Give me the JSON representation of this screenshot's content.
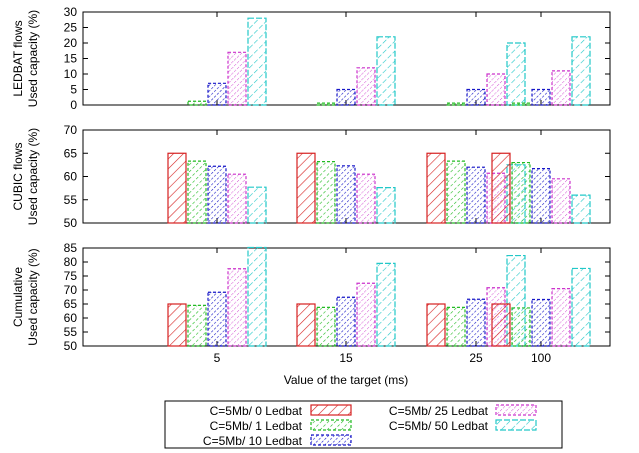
{
  "chart_data": [
    {
      "type": "bar",
      "ylabel": [
        "LEDBAT flows",
        "Used capacity (%)"
      ],
      "ylim": [
        0,
        30
      ],
      "yticks": [
        0,
        5,
        10,
        15,
        20,
        25,
        30
      ],
      "categories": [
        "5",
        "15",
        "25",
        "100"
      ],
      "series": [
        {
          "name": "C=5Mb/ 0 Ledbat",
          "values": [
            0,
            0,
            0,
            0
          ]
        },
        {
          "name": "C=5Mb/ 1 Ledbat",
          "values": [
            1.2,
            0.6,
            0.6,
            0.6
          ]
        },
        {
          "name": "C=5Mb/ 10 Ledbat",
          "values": [
            7,
            5,
            5,
            5
          ]
        },
        {
          "name": "C=5Mb/ 25 Ledbat",
          "values": [
            17,
            12,
            10,
            11
          ]
        },
        {
          "name": "C=5Mb/ 50 Ledbat",
          "values": [
            28,
            22,
            20,
            22
          ]
        }
      ]
    },
    {
      "type": "bar",
      "ylabel": [
        "CUBIC flows",
        "Used capacity (%)"
      ],
      "ylim": [
        50,
        70
      ],
      "yticks": [
        50,
        55,
        60,
        65,
        70
      ],
      "categories": [
        "5",
        "15",
        "25",
        "100"
      ],
      "series": [
        {
          "name": "C=5Mb/ 0 Ledbat",
          "values": [
            65,
            65,
            65,
            65
          ]
        },
        {
          "name": "C=5Mb/ 1 Ledbat",
          "values": [
            63.3,
            63.2,
            63.3,
            63
          ]
        },
        {
          "name": "C=5Mb/ 10 Ledbat",
          "values": [
            62.2,
            62.3,
            62,
            61.7
          ]
        },
        {
          "name": "C=5Mb/ 25 Ledbat",
          "values": [
            60.5,
            60.5,
            60.7,
            59.5
          ]
        },
        {
          "name": "C=5Mb/ 50 Ledbat",
          "values": [
            57.7,
            57.6,
            62.5,
            56
          ]
        }
      ]
    },
    {
      "type": "bar",
      "ylabel": [
        "Cumulative",
        "Used capacity (%)"
      ],
      "ylim": [
        50,
        85
      ],
      "yticks": [
        50,
        55,
        60,
        65,
        70,
        75,
        80,
        85
      ],
      "xlabel": "Value of the target (ms)",
      "categories": [
        "5",
        "15",
        "25",
        "100"
      ],
      "series": [
        {
          "name": "C=5Mb/ 0 Ledbat",
          "values": [
            65,
            65,
            65,
            65
          ]
        },
        {
          "name": "C=5Mb/ 1 Ledbat",
          "values": [
            64.5,
            63.8,
            63.8,
            63.6
          ]
        },
        {
          "name": "C=5Mb/ 10 Ledbat",
          "values": [
            69.2,
            67.4,
            66.7,
            66.6
          ]
        },
        {
          "name": "C=5Mb/ 25 Ledbat",
          "values": [
            77.6,
            72.4,
            70.8,
            70.5
          ]
        },
        {
          "name": "C=5Mb/ 50 Ledbat",
          "values": [
            85.2,
            79.5,
            82.3,
            77.7
          ]
        }
      ]
    }
  ],
  "legend": {
    "placement": "bottom",
    "entries": [
      "C=5Mb/ 0 Ledbat",
      "C=5Mb/ 1 Ledbat",
      "C=5Mb/ 10 Ledbat",
      "C=5Mb/ 25 Ledbat",
      "C=5Mb/ 50 Ledbat"
    ]
  },
  "colors": {
    "C=5Mb/ 0 Ledbat": "#d62020",
    "C=5Mb/ 1 Ledbat": "#22bb22",
    "C=5Mb/ 10 Ledbat": "#1818c8",
    "C=5Mb/ 25 Ledbat": "#cc33cc",
    "C=5Mb/ 50 Ledbat": "#22c8c8"
  },
  "grid": false
}
